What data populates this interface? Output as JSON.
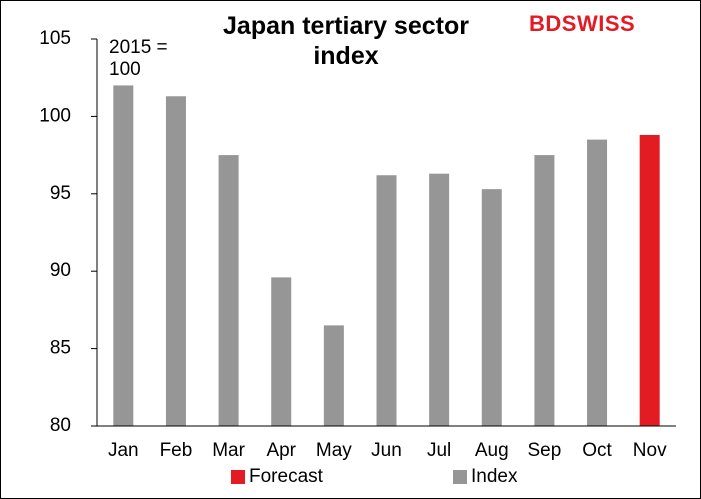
{
  "chart_data": {
    "type": "bar",
    "title": "Japan tertiary sector index",
    "annotation": "2015 = 100",
    "logo": "BDSWISS",
    "categories": [
      "Jan",
      "Feb",
      "Mar",
      "Apr",
      "May",
      "Jun",
      "Jul",
      "Aug",
      "Sep",
      "Oct",
      "Nov"
    ],
    "series": [
      {
        "name": "Forecast",
        "color": "#e31b23",
        "values": [
          null,
          null,
          null,
          null,
          null,
          null,
          null,
          null,
          null,
          null,
          98.8
        ]
      },
      {
        "name": "Index",
        "color": "#969696",
        "values": [
          102.0,
          101.3,
          97.5,
          89.6,
          86.5,
          96.2,
          96.3,
          95.3,
          97.5,
          98.5,
          null
        ]
      }
    ],
    "ylim": [
      80,
      105
    ],
    "yticks": [
      80,
      85,
      90,
      95,
      100,
      105
    ],
    "legend": "bottom"
  }
}
